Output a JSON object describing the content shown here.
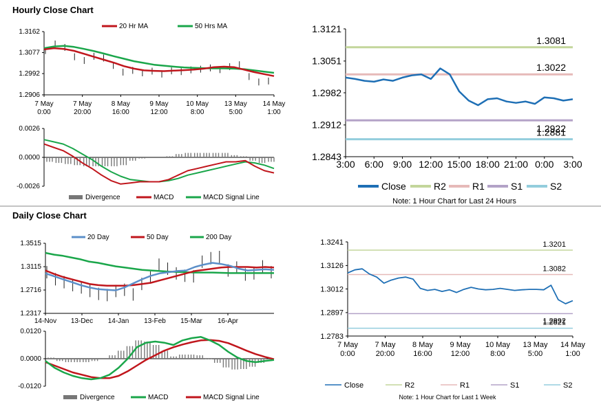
{
  "sections": {
    "hourly_title": "Hourly Close Chart",
    "daily_title": "Daily Close Chart"
  },
  "colors": {
    "ma20_hourly": "#c0161c",
    "ma50_hourly": "#1aa64a",
    "close_blue": "#1e6fb5",
    "r2": "#c3d69b",
    "r1": "#e6b9b8",
    "s1": "#b3a2c7",
    "s2": "#93cddd",
    "divergence": "#777777",
    "ma20_daily": "#5b8fc9",
    "ma50_daily": "#c0161c",
    "ma200_daily": "#1aa64a"
  },
  "chart_data": [
    {
      "id": "hourly_price",
      "type": "line",
      "title": "Hourly Close Chart",
      "legend": [
        "20 Hr MA",
        "50 Hrs MA"
      ],
      "y_ticks": [
        "1.3162",
        "1.3077",
        "1.2992",
        "1.2906"
      ],
      "ylim": [
        1.2906,
        1.3162
      ],
      "x_ticks": [
        [
          "7 May",
          "0:00"
        ],
        [
          "7 May",
          "20:00"
        ],
        [
          "8 May",
          "16:00"
        ],
        [
          "9 May",
          "12:00"
        ],
        [
          "10 May",
          "8:00"
        ],
        [
          "13 May",
          "5:00"
        ],
        [
          "14 May",
          "1:00"
        ]
      ],
      "series": [
        {
          "name": "Close",
          "values": [
            1.3085,
            1.3112,
            1.3098,
            1.306,
            1.3045,
            1.3062,
            1.3055,
            1.3025,
            1.2998,
            1.3005,
            1.2995,
            1.3002,
            1.299,
            1.3003,
            1.3,
            1.3007,
            1.301,
            1.3015,
            1.3008,
            1.302,
            1.3028,
            1.298,
            1.2958,
            1.2962
          ]
        },
        {
          "name": "20 Hr MA",
          "values": [
            1.309,
            1.3095,
            1.3092,
            1.3084,
            1.3072,
            1.306,
            1.3048,
            1.3036,
            1.3022,
            1.3012,
            1.3005,
            1.3003,
            1.3002,
            1.3004,
            1.3006,
            1.3008,
            1.3012,
            1.3018,
            1.302,
            1.3018,
            1.3008,
            1.2998,
            1.299,
            1.2982
          ]
        },
        {
          "name": "50 Hrs MA",
          "values": [
            1.3095,
            1.3102,
            1.3104,
            1.31,
            1.3092,
            1.3083,
            1.3073,
            1.3062,
            1.3052,
            1.3042,
            1.3035,
            1.3028,
            1.3024,
            1.302,
            1.3017,
            1.3015,
            1.3014,
            1.3013,
            1.3013,
            1.3012,
            1.301,
            1.3005,
            1.3,
            1.2995
          ]
        }
      ]
    },
    {
      "id": "hourly_macd",
      "type": "line",
      "legend": [
        "Divergence",
        "MACD",
        "MACD Signal Line"
      ],
      "y_ticks": [
        "0.0026",
        "0.0000",
        "-0.0026"
      ],
      "ylim": [
        -0.0026,
        0.0026
      ],
      "series": [
        {
          "name": "MACD",
          "values": [
            0.0012,
            0.0009,
            0.0006,
            0.0001,
            -0.0005,
            -0.001,
            -0.0016,
            -0.0021,
            -0.0024,
            -0.0023,
            -0.0022,
            -0.0022,
            -0.0022,
            -0.002,
            -0.0016,
            -0.0012,
            -0.001,
            -0.0008,
            -0.0006,
            -0.0004,
            -0.0004,
            -0.0003,
            -0.0008,
            -0.0012,
            -0.0014
          ]
        },
        {
          "name": "MACD Signal Line",
          "values": [
            0.0016,
            0.0014,
            0.0012,
            0.0008,
            0.0003,
            -0.0002,
            -0.0008,
            -0.0013,
            -0.0017,
            -0.002,
            -0.0021,
            -0.0022,
            -0.0022,
            -0.0021,
            -0.0019,
            -0.0016,
            -0.0014,
            -0.0012,
            -0.001,
            -0.0008,
            -0.0006,
            -0.0004,
            -0.0005,
            -0.0007,
            -0.001
          ]
        },
        {
          "name": "Divergence",
          "values": [
            -0.0004,
            -0.0005,
            -0.0006,
            -0.0007,
            -0.0008,
            -0.0008,
            -0.0008,
            -0.0008,
            -0.0007,
            -0.0003,
            -0.0001,
            0.0,
            0.0,
            0.0001,
            0.0003,
            0.0004,
            0.0004,
            0.0004,
            0.0004,
            0.0004,
            0.0002,
            0.0001,
            -0.0003,
            -0.0005,
            -0.0004
          ]
        }
      ]
    },
    {
      "id": "hourly_levels",
      "type": "line",
      "note": "Note: 1 Hour Chart for Last 24 Hours",
      "legend": [
        "Close",
        "R2",
        "R1",
        "S1",
        "S2"
      ],
      "y_ticks": [
        "1.3121",
        "1.3051",
        "1.2982",
        "1.2912",
        "1.2843"
      ],
      "ylim": [
        1.2843,
        1.3121
      ],
      "x_ticks": [
        "3:00",
        "6:00",
        "9:00",
        "12:00",
        "15:00",
        "18:00",
        "21:00",
        "0:00",
        "3:00"
      ],
      "levels": [
        {
          "name": "R2",
          "value": 1.3081,
          "label": "1.3081"
        },
        {
          "name": "R1",
          "value": 1.3022,
          "label": "1.3022"
        },
        {
          "name": "S1",
          "value": 1.2922,
          "label": "1.2922"
        },
        {
          "name": "S2",
          "value": 1.2881,
          "label": "1.2881"
        }
      ],
      "series": [
        {
          "name": "Close",
          "values": [
            1.3015,
            1.3012,
            1.3008,
            1.3006,
            1.3011,
            1.3008,
            1.3015,
            1.302,
            1.3022,
            1.3012,
            1.3035,
            1.3022,
            1.2985,
            1.2965,
            1.2955,
            1.2968,
            1.297,
            1.2963,
            1.296,
            1.2963,
            1.2958,
            1.2972,
            1.297,
            1.2965,
            1.2968
          ]
        }
      ]
    },
    {
      "id": "daily_price",
      "type": "line",
      "title": "Daily Close Chart",
      "legend": [
        "20 Day",
        "50 Day",
        "200 Day"
      ],
      "y_ticks": [
        "1.3515",
        "1.3115",
        "1.2716",
        "1.2317"
      ],
      "ylim": [
        1.2317,
        1.3515
      ],
      "x_ticks": [
        "14-Nov",
        "13-Dec",
        "14-Jan",
        "13-Feb",
        "15-Mar",
        "16-Apr"
      ],
      "series": [
        {
          "name": "Close",
          "values": [
            1.302,
            1.29,
            1.285,
            1.28,
            1.276,
            1.27,
            1.265,
            1.263,
            1.27,
            1.272,
            1.264,
            1.282,
            1.293,
            1.315,
            1.308,
            1.3,
            1.296,
            1.295,
            1.32,
            1.326,
            1.328,
            1.305,
            1.31,
            1.298,
            1.3,
            1.312,
            1.302
          ]
        },
        {
          "name": "20 Day",
          "values": [
            1.3,
            1.295,
            1.29,
            1.285,
            1.28,
            1.276,
            1.273,
            1.272,
            1.271,
            1.276,
            1.283,
            1.29,
            1.296,
            1.3,
            1.302,
            1.304,
            1.305,
            1.311,
            1.315,
            1.318,
            1.316,
            1.313,
            1.308,
            1.305,
            1.306,
            1.307,
            1.306
          ]
        },
        {
          "name": "50 Day",
          "values": [
            1.305,
            1.299,
            1.294,
            1.29,
            1.286,
            1.282,
            1.28,
            1.279,
            1.279,
            1.279,
            1.28,
            1.282,
            1.284,
            1.288,
            1.292,
            1.296,
            1.3,
            1.304,
            1.306,
            1.308,
            1.31,
            1.311,
            1.311,
            1.311,
            1.31,
            1.311,
            1.31
          ]
        },
        {
          "name": "200 Day",
          "values": [
            1.335,
            1.332,
            1.33,
            1.327,
            1.324,
            1.32,
            1.318,
            1.315,
            1.312,
            1.31,
            1.308,
            1.306,
            1.305,
            1.304,
            1.303,
            1.3025,
            1.302,
            1.3015,
            1.3015,
            1.3015,
            1.301,
            1.3005,
            1.3005,
            1.3005,
            1.3005,
            1.3005,
            1.3005
          ]
        }
      ]
    },
    {
      "id": "daily_macd",
      "type": "line",
      "legend": [
        "Divergence",
        "MACD",
        "MACD Signal Line"
      ],
      "y_ticks": [
        "0.0120",
        "0.0000",
        "-0.0120"
      ],
      "ylim": [
        -0.012,
        0.012
      ],
      "series": [
        {
          "name": "MACD",
          "values": [
            -0.001,
            -0.004,
            -0.006,
            -0.0075,
            -0.0085,
            -0.009,
            -0.0085,
            -0.007,
            -0.004,
            0.0,
            0.005,
            0.007,
            0.0075,
            0.007,
            0.006,
            0.008,
            0.009,
            0.0095,
            0.008,
            0.006,
            0.003,
            0.0005,
            -0.001,
            -0.0015,
            -0.001,
            -0.0005
          ]
        },
        {
          "name": "MACD Signal Line",
          "values": [
            -0.0015,
            -0.003,
            -0.0045,
            -0.006,
            -0.007,
            -0.008,
            -0.0085,
            -0.0085,
            -0.0075,
            -0.0055,
            -0.003,
            -0.0005,
            0.0015,
            0.0035,
            0.005,
            0.0062,
            0.0072,
            0.008,
            0.0082,
            0.0078,
            0.0068,
            0.0052,
            0.0035,
            0.002,
            0.0008,
            -0.0002
          ]
        },
        {
          "name": "Divergence",
          "values": [
            0.0005,
            -0.001,
            -0.0015,
            -0.0015,
            -0.0015,
            -0.001,
            0.0,
            0.0015,
            0.0035,
            0.0055,
            0.008,
            0.0075,
            0.006,
            0.0035,
            0.001,
            0.0018,
            0.0018,
            0.0015,
            -0.0002,
            -0.0018,
            -0.0038,
            -0.0047,
            -0.0045,
            -0.0035,
            -0.0018,
            -0.0003
          ]
        }
      ]
    },
    {
      "id": "daily_levels",
      "type": "line",
      "note": "Note: 1 Hour Chart for Last 1 Week",
      "legend": [
        "Close",
        "R2",
        "R1",
        "S1",
        "S2"
      ],
      "y_ticks": [
        "1.3241",
        "1.3126",
        "1.3012",
        "1.2897",
        "1.2783"
      ],
      "ylim": [
        1.2783,
        1.3241
      ],
      "x_ticks": [
        [
          "7 May",
          "0:00"
        ],
        [
          "7 May",
          "20:00"
        ],
        [
          "8 May",
          "16:00"
        ],
        [
          "9 May",
          "12:00"
        ],
        [
          "10 May",
          "8:00"
        ],
        [
          "13 May",
          "5:00"
        ],
        [
          "14 May",
          "1:00"
        ]
      ],
      "levels": [
        {
          "name": "R2",
          "value": 1.3201,
          "label": "1.3201"
        },
        {
          "name": "R1",
          "value": 1.3082,
          "label": "1.3082"
        },
        {
          "name": "S1",
          "value": 1.2892,
          "label": "1.2892"
        },
        {
          "name": "S2",
          "value": 1.2821,
          "label": "1.2821"
        }
      ],
      "series": [
        {
          "name": "Close",
          "values": [
            1.309,
            1.3105,
            1.311,
            1.3085,
            1.307,
            1.304,
            1.3055,
            1.3065,
            1.307,
            1.306,
            1.3015,
            1.3005,
            1.301,
            1.3,
            1.3008,
            1.2995,
            1.301,
            1.302,
            1.3012,
            1.3008,
            1.301,
            1.3015,
            1.301,
            1.3005,
            1.3008,
            1.301,
            1.301,
            1.3008,
            1.303,
            1.296,
            1.294,
            1.2955
          ]
        }
      ]
    }
  ]
}
